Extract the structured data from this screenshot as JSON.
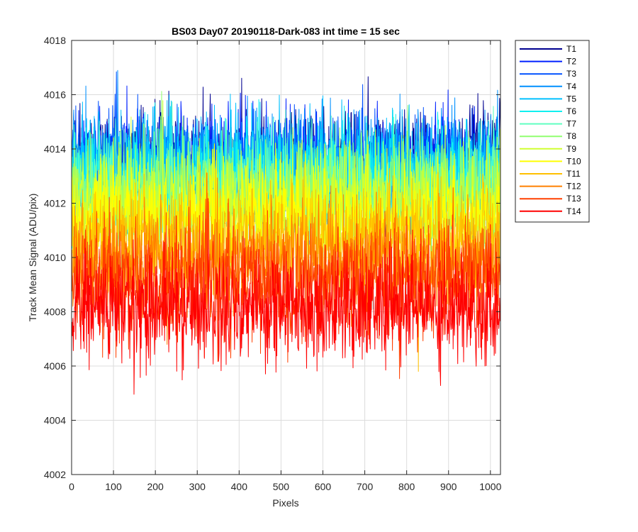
{
  "chart_data": {
    "type": "line",
    "title": "BS03 Day07 20190118-Dark-083 int time = 15 sec",
    "xlabel": "Pixels",
    "ylabel": "Track Mean Signal (ADU/pix)",
    "xlim": [
      0,
      1024
    ],
    "ylim": [
      4002,
      4018
    ],
    "xticks": [
      0,
      100,
      200,
      300,
      400,
      500,
      600,
      700,
      800,
      900,
      1000
    ],
    "yticks": [
      4002,
      4004,
      4006,
      4008,
      4010,
      4012,
      4014,
      4016,
      4018
    ],
    "grid": true,
    "legend_position": "outside-top-right",
    "series": [
      {
        "name": "T1",
        "color": "#00008f",
        "mean": 4013.6,
        "noise": 0.9
      },
      {
        "name": "T2",
        "color": "#0020ff",
        "mean": 4013.5,
        "noise": 0.9
      },
      {
        "name": "T3",
        "color": "#0050ff",
        "mean": 4013.4,
        "noise": 0.9
      },
      {
        "name": "T4",
        "color": "#0090ff",
        "mean": 4013.3,
        "noise": 0.95
      },
      {
        "name": "T5",
        "color": "#00c0ff",
        "mean": 4013.2,
        "noise": 1.0
      },
      {
        "name": "T6",
        "color": "#10f0f0",
        "mean": 4012.9,
        "noise": 1.0
      },
      {
        "name": "T7",
        "color": "#60ffc0",
        "mean": 4012.6,
        "noise": 1.0
      },
      {
        "name": "T8",
        "color": "#90ff70",
        "mean": 4012.3,
        "noise": 1.0
      },
      {
        "name": "T9",
        "color": "#d0ff30",
        "mean": 4012.0,
        "noise": 1.0
      },
      {
        "name": "T10",
        "color": "#ffff00",
        "mean": 4011.4,
        "noise": 1.0
      },
      {
        "name": "T11",
        "color": "#ffc000",
        "mean": 4010.6,
        "noise": 1.0
      },
      {
        "name": "T12",
        "color": "#ff8000",
        "mean": 4009.8,
        "noise": 1.0
      },
      {
        "name": "T13",
        "color": "#ff4000",
        "mean": 4009.1,
        "noise": 1.05
      },
      {
        "name": "T14",
        "color": "#ff0000",
        "mean": 4008.2,
        "noise": 1.05
      }
    ]
  }
}
